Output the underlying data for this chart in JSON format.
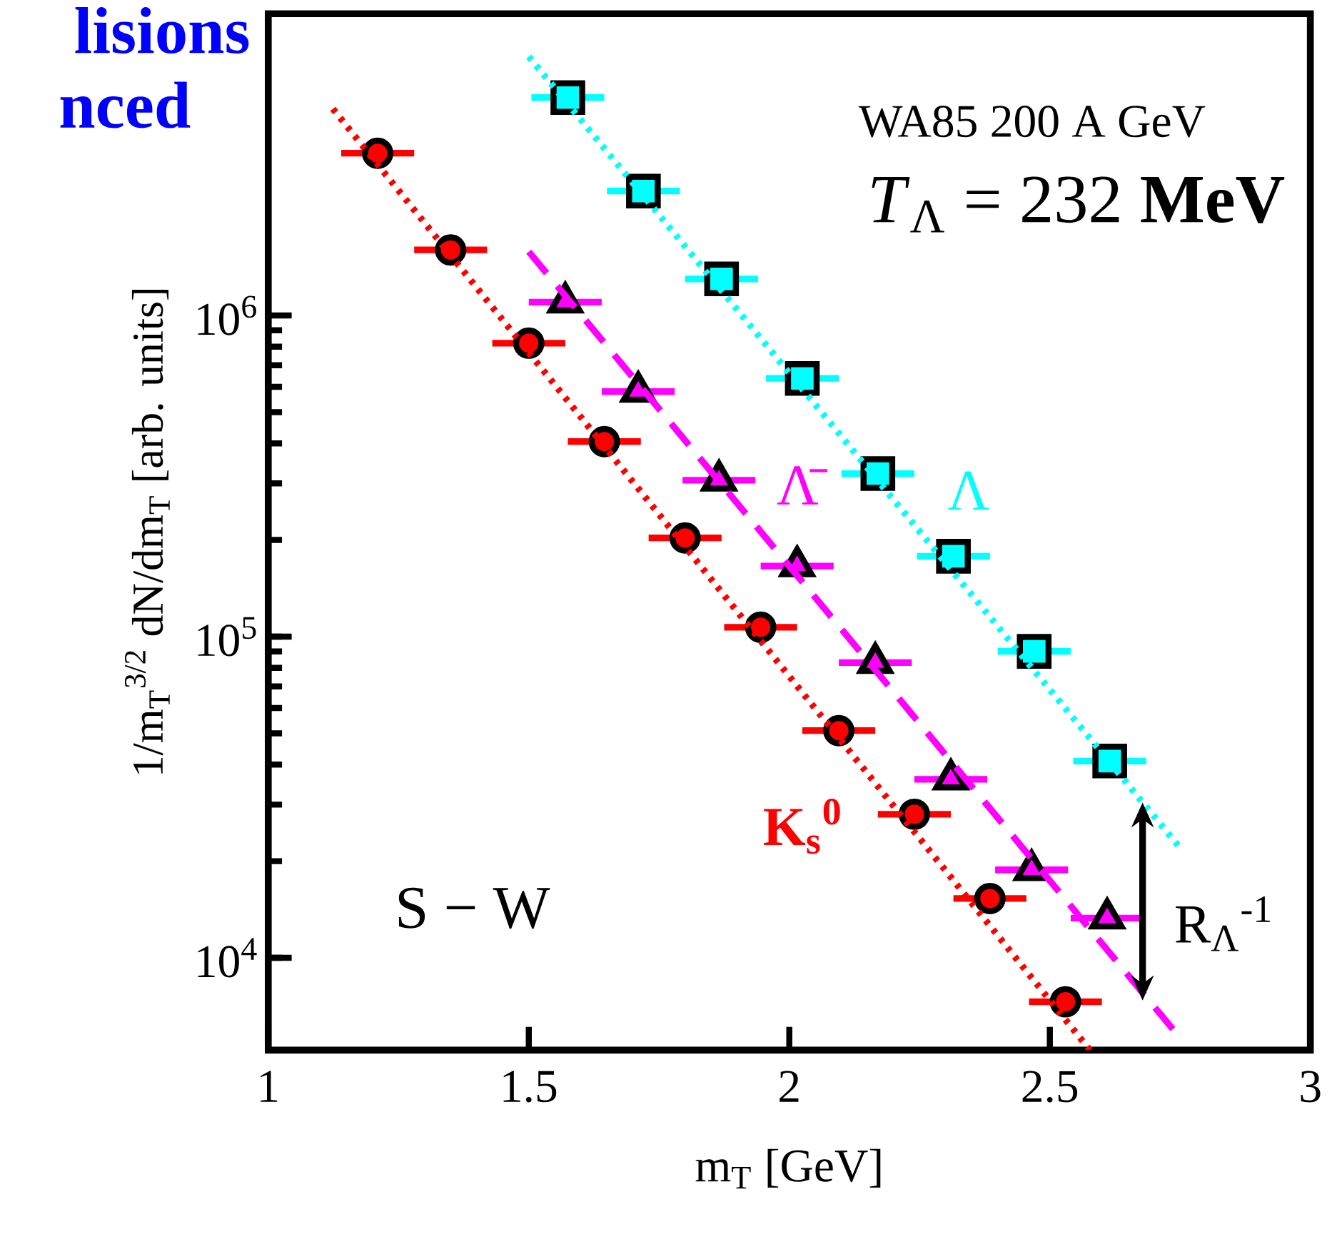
{
  "chart_data": {
    "type": "scatter",
    "xlabel": "m$_{T}$ [GeV]",
    "ylabel": "1/m$_{T}$$^{3/2}$ dN/dm$_{T}$ [arb. units]",
    "log": "y",
    "xlim": [
      1,
      3
    ],
    "ylim": [
      5160,
      8700000
    ],
    "xticks": [
      1,
      1.5,
      2,
      2.5,
      3
    ],
    "yticks": [
      {
        "value": 10000,
        "label": "10$^{4}$"
      },
      {
        "value": 100000,
        "label": "10$^{5}$"
      },
      {
        "value": 1000000,
        "label": "10$^{6}$"
      }
    ],
    "annotations": [
      "lisions",
      "nced",
      "WA85   200 A GeV",
      "*T*$_{Λ}$ = 232 **MeV**",
      "S − W",
      "R$_{Λ}$$^{-1}$"
    ],
    "series": [
      {
        "name": "K$_{s}$$^{0}$",
        "marker": "circle",
        "color": "#ff0000",
        "x": [
          1.21,
          1.5,
          1.645,
          1.8,
          1.945,
          2.095,
          2.24,
          2.385,
          2.53
        ],
        "values": [
          3200000,
          820000,
          405000,
          203000,
          107000,
          51000,
          28000,
          15300,
          7300
        ],
        "xerrors": [
          0.07,
          0.07,
          0.07,
          0.07,
          0.07,
          0.07,
          0.07,
          0.07,
          0.07
        ]
      },
      {
        "marker": "circle",
        "color": "#ff0000",
        "x": [
          1.35
        ],
        "values": [
          1600000
        ],
        "xerrors": [
          0.07
        ]
      },
      {
        "name": "Λ̄",
        "marker": "triangle",
        "color": "#ff00ff",
        "x": [
          1.57,
          1.71,
          1.865,
          2.015,
          2.165,
          2.31,
          2.465,
          2.61
        ],
        "values": [
          1100000,
          580000,
          307000,
          166000,
          83000,
          36000,
          18800,
          13300
        ],
        "xerrors": [
          0.07,
          0.07,
          0.07,
          0.07,
          0.07,
          0.07,
          0.07,
          0.07
        ]
      },
      {
        "name": "Λ",
        "marker": "square",
        "color": "#00ffff",
        "x": [
          1.575,
          1.72,
          1.87,
          2.025,
          2.17,
          2.315,
          2.47,
          2.615
        ],
        "values": [
          4770000,
          2440000,
          1300000,
          637000,
          322000,
          178000,
          90000,
          41000
        ],
        "xerrors": [
          0.07,
          0.07,
          0.07,
          0.07,
          0.07,
          0.07,
          0.07,
          0.07
        ]
      },
      {
        "type": "line",
        "marker": "none",
        "line_style": "dotted",
        "color": "#ff0000",
        "x": [
          1.124,
          2.577
        ],
        "values": [
          4400000,
          5160
        ]
      },
      {
        "type": "line",
        "marker": "none",
        "line_style": "dashed",
        "color": "#ff00ff",
        "x": [
          1.5,
          2.736
        ],
        "values": [
          1580000,
          6000
        ]
      },
      {
        "type": "line",
        "marker": "none",
        "line_style": "dotted",
        "color": "#00ffff",
        "x": [
          1.5,
          2.746
        ],
        "values": [
          6400000,
          22400
        ]
      }
    ]
  }
}
